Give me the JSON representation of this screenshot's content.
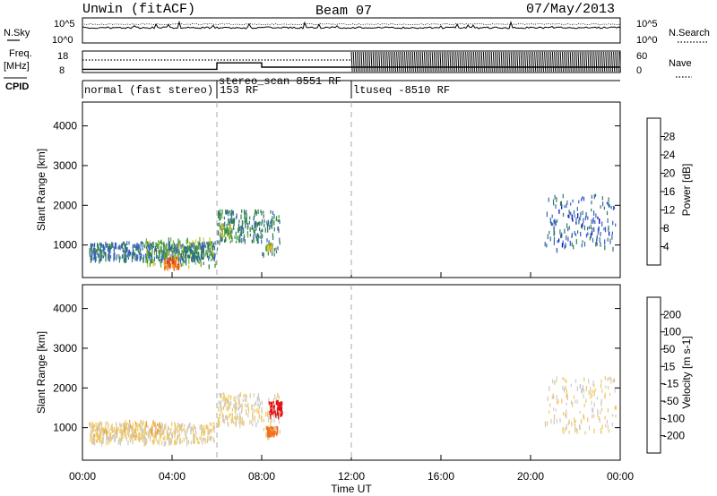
{
  "chart_data": [
    {
      "type": "line",
      "panel": "sky_noise_search_noise",
      "ylabels_left": [
        "N.Sky"
      ],
      "ylabels_right": [
        "N.Search"
      ],
      "yticks_left": [
        "10^5",
        "10^0"
      ],
      "yticks_right": [
        "10^5",
        "10^0"
      ],
      "series": [
        {
          "name": "N.Sky",
          "style": "solid"
        },
        {
          "name": "N.Search",
          "style": "dotted"
        }
      ]
    },
    {
      "type": "line",
      "panel": "frequency_nave",
      "ylabels_left": [
        "Freq.",
        "[MHz]"
      ],
      "ylabels_right": [
        "Nave"
      ],
      "yticks_left": [
        "18",
        "8"
      ],
      "yticks_right": [
        "60",
        "0"
      ],
      "series": [
        {
          "name": "Freq.",
          "style": "solid",
          "steps": [
            {
              "start_h": 0,
              "end_h": 6,
              "value_mhz": 9.5
            },
            {
              "start_h": 6,
              "end_h": 8,
              "value_mhz": 12.5
            },
            {
              "start_h": 8,
              "end_h": 12,
              "value_mhz": 10.5
            },
            {
              "start_h": 12,
              "end_h": 24,
              "value_mhz": 10.5
            }
          ]
        },
        {
          "name": "Nave",
          "style": "dotted"
        }
      ]
    },
    {
      "type": "table",
      "panel": "cpid",
      "label": "CPID",
      "segments": [
        {
          "start_h": 0,
          "end_h": 6,
          "text": "normal (fast stereo) 153 RF"
        },
        {
          "start_h": 6,
          "end_h": 12,
          "text": "stereo_scan 8551 RF"
        },
        {
          "start_h": 12,
          "end_h": 24,
          "text": "ltuseq -8510 RF"
        }
      ]
    },
    {
      "type": "heatmap",
      "panel": "power",
      "ylabel": "Slant Range [km]",
      "yticks": [
        1000,
        2000,
        3000,
        4000
      ],
      "ylim": [
        180,
        4600
      ],
      "xlim_hours": [
        0,
        24
      ],
      "colorbar": {
        "label": "Power [dB]",
        "ticks": [
          "28",
          "24",
          "20",
          "16",
          "12",
          "8",
          "4"
        ],
        "colors": [
          "#0000d0",
          "#3355dd",
          "#3a6aa8",
          "#2f7a60",
          "#2e8e3a",
          "#73b42a",
          "#cfc62a",
          "#f0a623",
          "#f07a1c",
          "#ea3a16",
          "#e01010"
        ]
      },
      "regions": [
        {
          "x": [
            0.3,
            5.9
          ],
          "y": [
            650,
            1100
          ],
          "value_db": 8,
          "density": 0.6
        },
        {
          "x": [
            2.8,
            6.0
          ],
          "y": [
            500,
            1200
          ],
          "value_db": 14,
          "density": 0.3
        },
        {
          "x": [
            3.6,
            4.3
          ],
          "y": [
            450,
            700
          ],
          "value_db": 24,
          "density": 0.5
        },
        {
          "x": [
            6.0,
            8.0
          ],
          "y": [
            1100,
            1900
          ],
          "value_db": 10,
          "density": 0.6
        },
        {
          "x": [
            6.1,
            6.6
          ],
          "y": [
            1200,
            1550
          ],
          "value_db": 16,
          "density": 0.4
        },
        {
          "x": [
            8.0,
            8.8
          ],
          "y": [
            800,
            1900
          ],
          "value_db": 9,
          "density": 0.5
        },
        {
          "x": [
            8.2,
            8.5
          ],
          "y": [
            900,
            1100
          ],
          "value_db": 18,
          "density": 0.4
        },
        {
          "x": [
            20.6,
            23.8
          ],
          "y": [
            900,
            2300
          ],
          "value_db": 6,
          "density": 0.35
        }
      ]
    },
    {
      "type": "heatmap",
      "panel": "velocity",
      "ylabel": "Slant Range [km]",
      "yticks": [
        1000,
        2000,
        3000,
        4000
      ],
      "ylim": [
        180,
        4600
      ],
      "xlim_hours": [
        0,
        24
      ],
      "xticks": [
        "00:00",
        "04:00",
        "08:00",
        "12:00",
        "16:00",
        "20:00",
        "00:00"
      ],
      "xlabel": "Time UT",
      "colorbar": {
        "label": "Velocity [m s-1]",
        "ticks": [
          "200",
          "100",
          "50",
          "15",
          "-15",
          "-50",
          "-100",
          "-200"
        ],
        "colors": [
          "#2233cc",
          "#3366bb",
          "#2f8a6a",
          "#7ccf3a",
          "#cccccc",
          "#f0c860",
          "#f0a030",
          "#f07020",
          "#ee3a10",
          "#e01010"
        ]
      },
      "regions": [
        {
          "x": [
            0.3,
            5.9
          ],
          "y": [
            650,
            1150
          ],
          "value_ms": 0,
          "density": 0.55
        },
        {
          "x": [
            0.3,
            3.5
          ],
          "y": [
            800,
            1200
          ],
          "value_ms": -40,
          "density": 0.15
        },
        {
          "x": [
            6.0,
            8.0
          ],
          "y": [
            1100,
            1900
          ],
          "value_ms": 0,
          "density": 0.6
        },
        {
          "x": [
            8.0,
            8.8
          ],
          "y": [
            800,
            1900
          ],
          "value_ms": 0,
          "density": 0.35
        },
        {
          "x": [
            8.3,
            8.9
          ],
          "y": [
            1300,
            1700
          ],
          "value_ms": -250,
          "density": 0.7
        },
        {
          "x": [
            8.2,
            8.7
          ],
          "y": [
            850,
            1050
          ],
          "value_ms": -90,
          "density": 0.7
        },
        {
          "x": [
            20.6,
            23.8
          ],
          "y": [
            900,
            2300
          ],
          "value_ms": 0,
          "density": 0.3
        }
      ]
    }
  ],
  "header": {
    "title": "Unwin (fitACF)",
    "beam": "Beam 07",
    "date": "07/May/2013"
  },
  "labels": {
    "nsky": "N.Sky",
    "nsearch": "N.Search",
    "freq": "Freq.",
    "mhz": "[MHz]",
    "nave": "Nave",
    "cpid": "CPID",
    "tick_1e5": "10^5",
    "tick_1e0": "10^0",
    "freq_hi": "18",
    "freq_lo": "8",
    "nave_hi": "60",
    "nave_lo": "0",
    "ylabel": "Slant Range [km]",
    "xlabel": "Time UT",
    "power_label": "Power [dB]",
    "velocity_label": "Velocity [m s-1]"
  }
}
